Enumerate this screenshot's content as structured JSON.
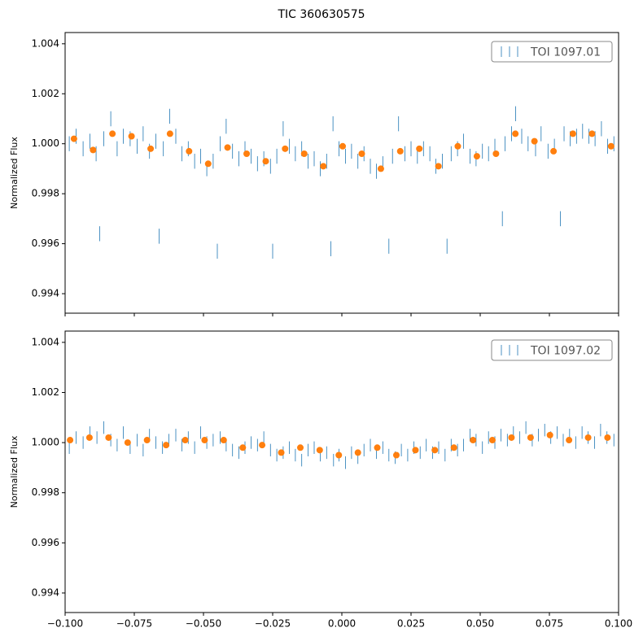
{
  "title": "TIC 360630575",
  "chart_data": [
    {
      "type": "errorbar",
      "ylabel": "Normalized Flux",
      "legend": "upper right",
      "show_xtick_labels": false,
      "xlim": [
        -0.1,
        0.1
      ],
      "ylim": [
        0.99322,
        1.00445
      ],
      "xticks": [
        {
          "value": -0.1,
          "label": "−0.100"
        },
        {
          "value": -0.075,
          "label": "−0.075"
        },
        {
          "value": -0.05,
          "label": "−0.050"
        },
        {
          "value": -0.025,
          "label": "−0.025"
        },
        {
          "value": 0,
          "label": "0.000"
        },
        {
          "value": 0.025,
          "label": "0.025"
        },
        {
          "value": 0.05,
          "label": "0.050"
        },
        {
          "value": 0.075,
          "label": "0.075"
        },
        {
          "value": 0.1,
          "label": "0.100"
        }
      ],
      "yticks": [
        0.994,
        0.996,
        0.998,
        {
          "value": 1,
          "label": "1.000"
        },
        1.002,
        1.004
      ],
      "series": [
        {
          "name": "TOI 1097.01",
          "color": "#1f77b4",
          "yerr": 0.0003,
          "x": [
            -0.0985,
            -0.096,
            -0.0935,
            -0.091,
            -0.0888,
            -0.0875,
            -0.086,
            -0.0835,
            -0.0812,
            -0.079,
            -0.0765,
            -0.074,
            -0.0718,
            -0.0695,
            -0.0672,
            -0.066,
            -0.0645,
            -0.0622,
            -0.06,
            -0.0578,
            -0.0555,
            -0.0532,
            -0.051,
            -0.0488,
            -0.0465,
            -0.045,
            -0.044,
            -0.0418,
            -0.0395,
            -0.0372,
            -0.035,
            -0.0328,
            -0.0305,
            -0.0282,
            -0.0258,
            -0.025,
            -0.0235,
            -0.0212,
            -0.019,
            -0.0168,
            -0.0145,
            -0.0122,
            -0.01,
            -0.0078,
            -0.0055,
            -0.004,
            -0.0032,
            -0.001,
            0.0013,
            0.0035,
            0.0058,
            0.008,
            0.0103,
            0.0125,
            0.0148,
            0.017,
            0.0183,
            0.0205,
            0.0228,
            0.025,
            0.0273,
            0.0295,
            0.0318,
            0.034,
            0.0363,
            0.038,
            0.0395,
            0.0418,
            0.044,
            0.0463,
            0.0485,
            0.0508,
            0.053,
            0.0553,
            0.058,
            0.059,
            0.0613,
            0.0628,
            0.065,
            0.0673,
            0.07,
            0.072,
            0.0745,
            0.0768,
            0.079,
            0.0803,
            0.0825,
            0.0848,
            0.087,
            0.0893,
            0.0915,
            0.0938,
            0.096,
            0.0983
          ],
          "values": [
            1.0,
            1.0003,
            0.9998,
            1.0001,
            0.9996,
            0.9964,
            1.0002,
            1.001,
            0.9998,
            1.0003,
            1.0002,
            0.9999,
            1.0004,
            0.9997,
            1.0001,
            0.9963,
            0.9998,
            1.0011,
            1.0003,
            0.9996,
            0.9998,
            0.9993,
            0.9995,
            0.999,
            0.9993,
            0.9957,
            1.0,
            1.0007,
            0.9997,
            0.9994,
            0.9998,
            0.9995,
            0.9992,
            0.9994,
            0.9991,
            0.9957,
            0.9995,
            1.0006,
            0.9999,
            0.9996,
            0.9998,
            0.9993,
            0.9994,
            0.999,
            0.9993,
            0.9958,
            1.0008,
            0.9998,
            0.9995,
            0.9997,
            0.9993,
            0.9996,
            0.9991,
            0.9989,
            0.9992,
            0.9959,
            0.9995,
            1.0008,
            0.9996,
            0.9998,
            0.9995,
            0.9998,
            0.9996,
            0.9991,
            0.9993,
            0.9959,
            0.9996,
            0.9998,
            1.0001,
            0.9995,
            0.9994,
            0.9997,
            0.9996,
            0.9999,
            0.997,
            1.0,
            1.0004,
            1.0012,
            1.0003,
            1.0,
            0.9998,
            1.0004,
            0.9997,
            0.9999,
            0.997,
            1.0004,
            1.0002,
            1.0003,
            1.0005,
            1.0003,
            1.0002,
            1.0006,
            0.9999,
            1.0
          ]
        }
      ],
      "binned": {
        "color": "#ff7f0e",
        "x": [
          -0.0968,
          -0.0899,
          -0.0829,
          -0.076,
          -0.0691,
          -0.0621,
          -0.0552,
          -0.0483,
          -0.0413,
          -0.0344,
          -0.0275,
          -0.0205,
          -0.0136,
          -0.0067,
          0.0003,
          0.0072,
          0.0141,
          0.0211,
          0.028,
          0.0349,
          0.0419,
          0.0488,
          0.0557,
          0.0627,
          0.0696,
          0.0765,
          0.0835,
          0.0904,
          0.0973
        ],
        "values": [
          1.0002,
          0.99975,
          1.0004,
          1.0003,
          0.9998,
          1.0004,
          0.9997,
          0.9992,
          0.99985,
          0.9996,
          0.9993,
          0.9998,
          0.9996,
          0.9991,
          0.9999,
          0.9996,
          0.999,
          0.9997,
          0.9998,
          0.9991,
          0.9999,
          0.9995,
          0.9996,
          1.0004,
          1.0001,
          0.9997,
          1.0004,
          1.0004,
          0.9999
        ]
      }
    },
    {
      "type": "errorbar",
      "ylabel": "Normalized Flux",
      "legend": "upper right",
      "show_xtick_labels": true,
      "xlim": [
        -0.1,
        0.1
      ],
      "ylim": [
        0.99322,
        1.00445
      ],
      "xticks": [
        {
          "value": -0.1,
          "label": "−0.100"
        },
        {
          "value": -0.075,
          "label": "−0.075"
        },
        {
          "value": -0.05,
          "label": "−0.050"
        },
        {
          "value": -0.025,
          "label": "−0.025"
        },
        {
          "value": 0,
          "label": "0.000"
        },
        {
          "value": 0.025,
          "label": "0.025"
        },
        {
          "value": 0.05,
          "label": "0.050"
        },
        {
          "value": 0.075,
          "label": "0.075"
        },
        {
          "value": 0.1,
          "label": "0.100"
        }
      ],
      "yticks": [
        0.994,
        0.996,
        0.998,
        {
          "value": 1,
          "label": "1.000"
        },
        1.002,
        1.004
      ],
      "series": [
        {
          "name": "TOI 1097.02",
          "color": "#1f77b4",
          "yerr": 0.00025,
          "x": [
            -0.0985,
            -0.096,
            -0.0935,
            -0.091,
            -0.0885,
            -0.086,
            -0.0835,
            -0.0812,
            -0.079,
            -0.0765,
            -0.074,
            -0.0718,
            -0.0695,
            -0.0672,
            -0.0648,
            -0.0625,
            -0.06,
            -0.0578,
            -0.0555,
            -0.0532,
            -0.051,
            -0.0488,
            -0.0465,
            -0.044,
            -0.0418,
            -0.0395,
            -0.0372,
            -0.035,
            -0.0328,
            -0.0305,
            -0.0282,
            -0.0258,
            -0.0235,
            -0.0212,
            -0.019,
            -0.0168,
            -0.0145,
            -0.0122,
            -0.01,
            -0.0078,
            -0.0055,
            -0.003,
            -0.001,
            0.0013,
            0.0035,
            0.0058,
            0.008,
            0.0103,
            0.0125,
            0.0148,
            0.017,
            0.0193,
            0.0215,
            0.0238,
            0.026,
            0.0283,
            0.0305,
            0.0328,
            0.035,
            0.0373,
            0.0395,
            0.0418,
            0.044,
            0.0463,
            0.0485,
            0.0508,
            0.053,
            0.0553,
            0.0575,
            0.0598,
            0.062,
            0.0643,
            0.0665,
            0.0688,
            0.071,
            0.0733,
            0.0755,
            0.0778,
            0.08,
            0.0823,
            0.0845,
            0.0868,
            0.089,
            0.0913,
            0.0935,
            0.0958,
            0.0983
          ],
          "values": [
            0.9998,
            1.0002,
            1.0,
            1.0004,
            1.0002,
            1.0006,
            1.0001,
            0.9999,
            1.0004,
            0.9998,
            1.0001,
            0.9997,
            1.0003,
            1.0,
            0.9998,
            1.0001,
            1.0003,
            0.9999,
            1.0002,
            0.9998,
            1.0004,
            1.0,
            1.0001,
            1.0002,
            0.9999,
            0.9997,
            0.9996,
            0.9998,
            1.0,
            0.9999,
            1.0002,
            0.9997,
            0.9995,
            0.9996,
            0.9998,
            0.9995,
            0.9993,
            0.9997,
            0.9998,
            0.9995,
            0.9996,
            0.9993,
            0.9995,
            0.9992,
            0.9996,
            0.9994,
            0.9997,
            0.9999,
            0.9996,
            0.9998,
            0.9995,
            0.9994,
            0.9997,
            0.9995,
            0.9998,
            0.9996,
            0.9999,
            0.9996,
            0.9998,
            0.9995,
            0.9999,
            0.9997,
            0.9999,
            1.0003,
            1.0001,
            0.9998,
            1.0002,
            1.0,
            1.0003,
            1.0001,
            1.0004,
            1.0002,
            1.0006,
            1.0001,
            1.0003,
            1.0005,
            1.0002,
            1.0004,
            1.0001,
            1.0003,
            1.0,
            1.0004,
            1.0002,
            1.0,
            1.0005,
            1.0002,
            1.0001
          ]
        }
      ],
      "binned": {
        "color": "#ff7f0e",
        "x": [
          -0.0982,
          -0.0912,
          -0.0843,
          -0.0774,
          -0.0704,
          -0.0635,
          -0.0566,
          -0.0496,
          -0.0427,
          -0.0358,
          -0.0288,
          -0.0219,
          -0.015,
          -0.008,
          -0.0011,
          0.0058,
          0.0128,
          0.0197,
          0.0266,
          0.0336,
          0.0405,
          0.0474,
          0.0544,
          0.0613,
          0.0682,
          0.0752,
          0.0821,
          0.089,
          0.096
        ],
        "values": [
          1.0001,
          1.0002,
          1.0002,
          1.0,
          1.0001,
          0.9999,
          1.0001,
          1.0001,
          1.0001,
          0.9998,
          0.9999,
          0.9996,
          0.9998,
          0.9997,
          0.9995,
          0.9996,
          0.9998,
          0.9995,
          0.9997,
          0.9997,
          0.9998,
          1.0001,
          1.0001,
          1.0002,
          1.0002,
          1.0003,
          1.0001,
          1.0002,
          1.0002
        ]
      }
    }
  ]
}
